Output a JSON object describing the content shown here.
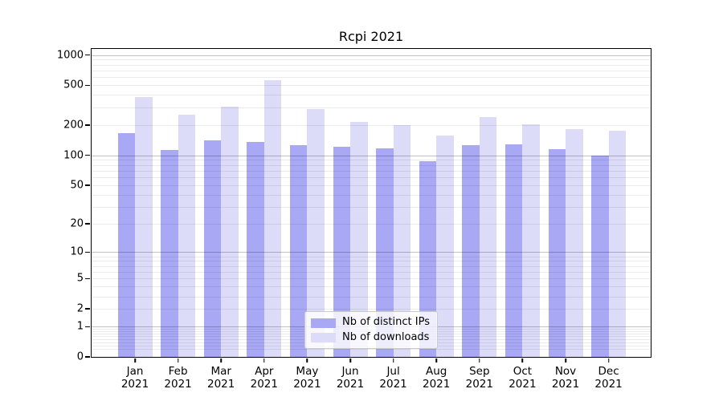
{
  "chart_data": {
    "type": "bar",
    "title": "Rcpi 2021",
    "categories": [
      {
        "month": "Jan",
        "year": "2021"
      },
      {
        "month": "Feb",
        "year": "2021"
      },
      {
        "month": "Mar",
        "year": "2021"
      },
      {
        "month": "Apr",
        "year": "2021"
      },
      {
        "month": "May",
        "year": "2021"
      },
      {
        "month": "Jun",
        "year": "2021"
      },
      {
        "month": "Jul",
        "year": "2021"
      },
      {
        "month": "Aug",
        "year": "2021"
      },
      {
        "month": "Sep",
        "year": "2021"
      },
      {
        "month": "Oct",
        "year": "2021"
      },
      {
        "month": "Nov",
        "year": "2021"
      },
      {
        "month": "Dec",
        "year": "2021"
      }
    ],
    "series": [
      {
        "name": "Nb of distinct IPs",
        "color": "#a8a8f4",
        "values": [
          167,
          113,
          140,
          137,
          126,
          121,
          118,
          88,
          126,
          129,
          115,
          99
        ]
      },
      {
        "name": "Nb of downloads",
        "color": "#dcdcf9",
        "values": [
          380,
          255,
          308,
          560,
          292,
          216,
          202,
          158,
          240,
          203,
          183,
          175
        ]
      }
    ],
    "y_axis": {
      "scale": "log10(1+x)",
      "ticks": [
        0,
        1,
        2,
        5,
        10,
        20,
        50,
        100,
        200,
        500,
        1000
      ],
      "max": 1150,
      "major_gridlines": [
        1,
        10,
        100,
        1000
      ]
    },
    "x_axis": {
      "tick_label_lines": 2
    },
    "legend_position": "lower center",
    "grid": true,
    "colors": {
      "axis": "#000000",
      "major_grid": "rgba(0,0,0,0.24)",
      "minor_grid": "rgba(0,0,0,0.08)",
      "background": "#ffffff"
    }
  }
}
